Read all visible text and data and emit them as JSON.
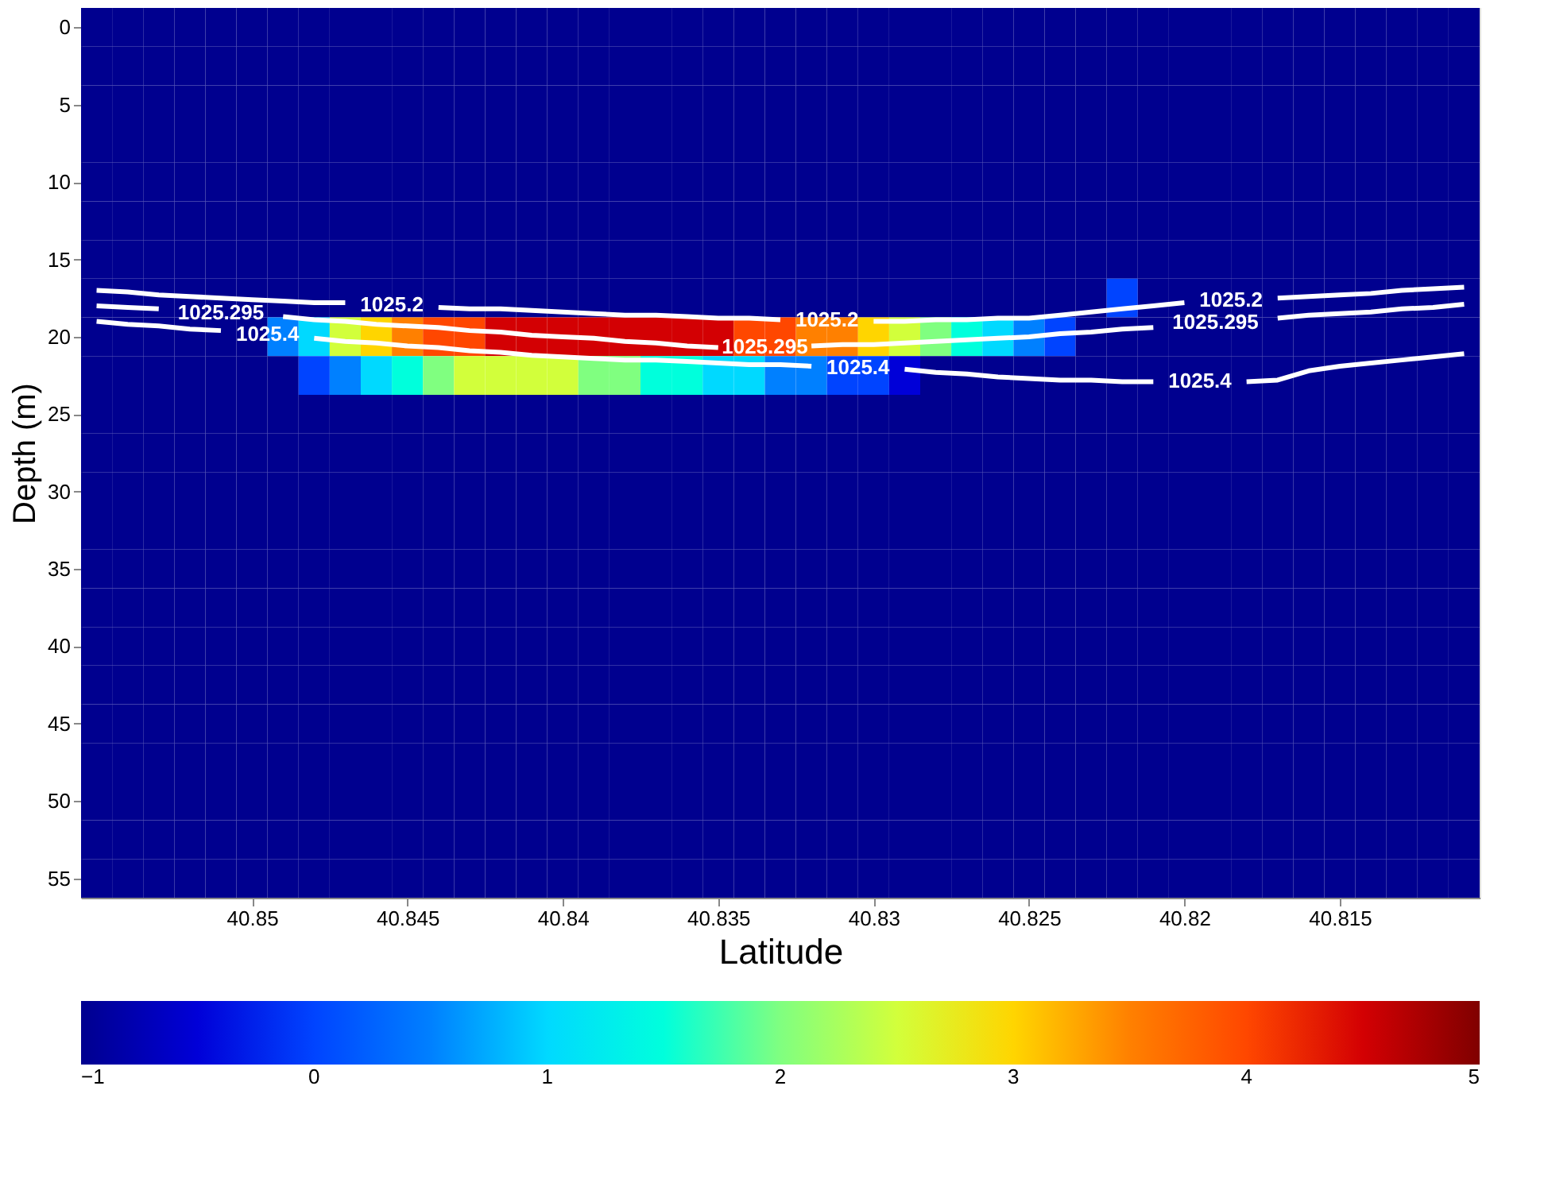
{
  "chart_data": [
    {
      "type": "heatmap",
      "tick_labels": false,
      "categories": [
        null,
        null,
        null,
        null,
        null,
        null,
        null,
        null,
        null,
        null,
        null,
        null,
        null,
        null,
        null,
        null,
        null,
        null,
        null,
        null,
        null,
        null,
        null,
        null,
        null,
        null,
        null,
        null,
        null,
        null,
        null,
        null,
        null,
        null,
        null,
        null,
        null,
        null,
        null,
        null,
        null,
        null,
        null,
        null,
        null
      ],
      "y_categories": [
        null,
        null,
        null,
        null,
        null,
        null,
        null,
        null,
        null,
        null,
        null,
        null,
        null,
        null,
        null,
        null,
        null,
        null,
        null,
        null,
        null,
        null,
        null
      ],
      "cells": [
        [
          -1,
          -1,
          -1,
          -1,
          -1,
          -1,
          -1,
          -1,
          -1,
          -1,
          -1,
          -1,
          -1,
          -1,
          -1,
          -1,
          -1,
          -1,
          -1,
          -1,
          -1,
          -1,
          -1,
          -1,
          -1,
          -1,
          -1,
          -1,
          -1,
          -1,
          -1,
          -1,
          -1,
          -1,
          -1,
          -1,
          -1,
          -1,
          -1,
          -1,
          -1,
          -1,
          -1,
          -1,
          -1
        ],
        [
          -1,
          -1,
          -1,
          -1,
          -1,
          -1,
          -1,
          -1,
          -1,
          -1,
          -1,
          -1,
          -1,
          -1,
          -1,
          -1,
          -1,
          -1,
          -1,
          -1,
          -1,
          -1,
          -1,
          -1,
          -1,
          -1,
          -1,
          -1,
          -1,
          -1,
          -1,
          -1,
          -1,
          -1,
          -1,
          -1,
          -1,
          -1,
          -1,
          -1,
          -1,
          -1,
          -1,
          -1,
          -1
        ],
        [
          -1,
          -1,
          -1,
          -1,
          -1,
          -1,
          -1,
          -1,
          -1,
          -1,
          -1,
          -1,
          -1,
          -1,
          -1,
          -1,
          -1,
          -1,
          -1,
          -1,
          -1,
          -1,
          -1,
          -1,
          -1,
          -1,
          -1,
          -1,
          -1,
          -1,
          -1,
          -1,
          -1,
          -1,
          -1,
          -1,
          -1,
          -1,
          -1,
          -1,
          -1,
          -1,
          -1,
          -1,
          -1
        ],
        [
          -1,
          -1,
          -1,
          -1,
          -1,
          -1,
          -1,
          -1,
          -1,
          -1,
          -1,
          -1,
          -1,
          -1,
          -1,
          -1,
          -1,
          -1,
          -1,
          -1,
          -1,
          -1,
          -1,
          -1,
          -1,
          -1,
          -1,
          -1,
          -1,
          -1,
          -1,
          -1,
          -1,
          -1,
          -1,
          -1,
          -1,
          -1,
          -1,
          -1,
          -1,
          -1,
          -1,
          -1,
          -1
        ],
        [
          -1,
          -1,
          -1,
          -1,
          -1,
          -1,
          -1,
          -1,
          -1,
          -1,
          -1,
          -1,
          -1,
          -1,
          -1,
          -1,
          -1,
          -1,
          -1,
          -1,
          -1,
          -1,
          -1,
          -1,
          -1,
          -1,
          -1,
          -1,
          -1,
          -1,
          -1,
          -1,
          -1,
          -1,
          -1,
          -1,
          -1,
          -1,
          -1,
          -1,
          -1,
          -1,
          -1,
          -1,
          -1
        ],
        [
          -1,
          -1,
          -1,
          -1,
          -1,
          -1,
          -1,
          -1,
          -1,
          -1,
          -1,
          -1,
          -1,
          -1,
          -1,
          -1,
          -1,
          -1,
          -1,
          -1,
          -1,
          -1,
          -1,
          -1,
          -1,
          -1,
          -1,
          -1,
          -1,
          -1,
          -1,
          -1,
          -1,
          -1,
          -1,
          -1,
          -1,
          -1,
          -1,
          -1,
          -1,
          -1,
          -1,
          -1,
          -1
        ],
        [
          -1,
          -1,
          -1,
          -1,
          -1,
          -1,
          -1,
          -1,
          -1,
          -1,
          -1,
          -1,
          -1,
          -1,
          -1,
          -1,
          -1,
          -1,
          -1,
          -1,
          -1,
          -1,
          -1,
          -1,
          -1,
          -1,
          -1,
          -1,
          -1,
          -1,
          -1,
          -1,
          -1,
          -1,
          -1,
          -1,
          -1,
          -1,
          -1,
          -1,
          -1,
          -1,
          -1,
          -1,
          -1
        ],
        [
          -1,
          -1,
          -1,
          -1,
          -1,
          -1,
          -1,
          -1,
          -1,
          -1,
          -1,
          -1,
          -1,
          -1,
          -1,
          -1,
          -1,
          -1,
          -1,
          -1,
          -1,
          -1,
          -1,
          -1,
          -1,
          -1,
          -1,
          -1,
          -1,
          -1,
          -1,
          -1,
          -1,
          0,
          -1,
          -1,
          -1,
          -1,
          -1,
          -1,
          -1,
          -1,
          -1,
          -1,
          -1
        ],
        [
          -1,
          -1,
          -1,
          -1,
          -1,
          -1,
          0.5,
          1,
          2.5,
          3,
          3.5,
          4,
          4,
          4.5,
          4.5,
          4.5,
          4.5,
          4.5,
          4.5,
          4.5,
          4.5,
          4,
          4,
          3.5,
          3.5,
          3,
          2.5,
          2,
          1.5,
          1,
          0.5,
          0,
          -1,
          -1,
          -1,
          -1,
          -1,
          -1,
          -1,
          -1,
          -1,
          -1,
          -1,
          -1,
          -1
        ],
        [
          -1,
          -1,
          -1,
          -1,
          -1,
          -1,
          -1,
          0,
          0.5,
          1,
          1.5,
          2,
          2.5,
          2.5,
          2.5,
          2.5,
          2,
          2,
          1.5,
          1.5,
          1,
          1,
          0.5,
          0.5,
          0,
          0,
          -0.5,
          -1,
          -1,
          -1,
          -1,
          -1,
          -1,
          -1,
          -1,
          -1,
          -1,
          -1,
          -1,
          -1,
          -1,
          -1,
          -1,
          -1,
          -1
        ],
        [
          -1,
          -1,
          -1,
          -1,
          -1,
          -1,
          -1,
          -1,
          -1,
          -1,
          -1,
          -1,
          -1,
          -1,
          -1,
          -1,
          -1,
          -1,
          -1,
          -1,
          -1,
          -1,
          -1,
          -1,
          -1,
          -1,
          -1,
          -1,
          -1,
          -1,
          -1,
          -1,
          -1,
          -1,
          -1,
          -1,
          -1,
          -1,
          -1,
          -1,
          -1,
          -1,
          -1,
          -1,
          -1
        ],
        [
          -1,
          -1,
          -1,
          -1,
          -1,
          -1,
          -1,
          -1,
          -1,
          -1,
          -1,
          -1,
          -1,
          -1,
          -1,
          -1,
          -1,
          -1,
          -1,
          -1,
          -1,
          -1,
          -1,
          -1,
          -1,
          -1,
          -1,
          -1,
          -1,
          -1,
          -1,
          -1,
          -1,
          -1,
          -1,
          -1,
          -1,
          -1,
          -1,
          -1,
          -1,
          -1,
          -1,
          -1,
          -1
        ],
        [
          -1,
          -1,
          -1,
          -1,
          -1,
          -1,
          -1,
          -1,
          -1,
          -1,
          -1,
          -1,
          -1,
          -1,
          -1,
          -1,
          -1,
          -1,
          -1,
          -1,
          -1,
          -1,
          -1,
          -1,
          -1,
          -1,
          -1,
          -1,
          -1,
          -1,
          -1,
          -1,
          -1,
          -1,
          -1,
          -1,
          -1,
          -1,
          -1,
          -1,
          -1,
          -1,
          -1,
          -1,
          -1
        ],
        [
          -1,
          -1,
          -1,
          -1,
          -1,
          -1,
          -1,
          -1,
          -1,
          -1,
          -1,
          -1,
          -1,
          -1,
          -1,
          -1,
          -1,
          -1,
          -1,
          -1,
          -1,
          -1,
          -1,
          -1,
          -1,
          -1,
          -1,
          -1,
          -1,
          -1,
          -1,
          -1,
          -1,
          -1,
          -1,
          -1,
          -1,
          -1,
          -1,
          -1,
          -1,
          -1,
          -1,
          -1,
          -1
        ],
        [
          -1,
          -1,
          -1,
          -1,
          -1,
          -1,
          -1,
          -1,
          -1,
          -1,
          -1,
          -1,
          -1,
          -1,
          -1,
          -1,
          -1,
          -1,
          -1,
          -1,
          -1,
          -1,
          -1,
          -1,
          -1,
          -1,
          -1,
          -1,
          -1,
          -1,
          -1,
          -1,
          -1,
          -1,
          -1,
          -1,
          -1,
          -1,
          -1,
          -1,
          -1,
          -1,
          -1,
          -1,
          -1
        ],
        [
          -1,
          -1,
          -1,
          -1,
          -1,
          -1,
          -1,
          -1,
          -1,
          -1,
          -1,
          -1,
          -1,
          -1,
          -1,
          -1,
          -1,
          -1,
          -1,
          -1,
          -1,
          -1,
          -1,
          -1,
          -1,
          -1,
          -1,
          -1,
          -1,
          -1,
          -1,
          -1,
          -1,
          -1,
          -1,
          -1,
          -1,
          -1,
          -1,
          -1,
          -1,
          -1,
          -1,
          -1,
          -1
        ],
        [
          -1,
          -1,
          -1,
          -1,
          -1,
          -1,
          -1,
          -1,
          -1,
          -1,
          -1,
          -1,
          -1,
          -1,
          -1,
          -1,
          -1,
          -1,
          -1,
          -1,
          -1,
          -1,
          -1,
          -1,
          -1,
          -1,
          -1,
          -1,
          -1,
          -1,
          -1,
          -1,
          -1,
          -1,
          -1,
          -1,
          -1,
          -1,
          -1,
          -1,
          -1,
          -1,
          -1,
          -1,
          -1
        ],
        [
          -1,
          -1,
          -1,
          -1,
          -1,
          -1,
          -1,
          -1,
          -1,
          -1,
          -1,
          -1,
          -1,
          -1,
          -1,
          -1,
          -1,
          -1,
          -1,
          -1,
          -1,
          -1,
          -1,
          -1,
          -1,
          -1,
          -1,
          -1,
          -1,
          -1,
          -1,
          -1,
          -1,
          -1,
          -1,
          -1,
          -1,
          -1,
          -1,
          -1,
          -1,
          -1,
          -1,
          -1,
          -1
        ],
        [
          -1,
          -1,
          -1,
          -1,
          -1,
          -1,
          -1,
          -1,
          -1,
          -1,
          -1,
          -1,
          -1,
          -1,
          -1,
          -1,
          -1,
          -1,
          -1,
          -1,
          -1,
          -1,
          -1,
          -1,
          -1,
          -1,
          -1,
          -1,
          -1,
          -1,
          -1,
          -1,
          -1,
          -1,
          -1,
          -1,
          -1,
          -1,
          -1,
          -1,
          -1,
          -1,
          -1,
          -1,
          -1
        ],
        [
          -1,
          -1,
          -1,
          -1,
          -1,
          -1,
          -1,
          -1,
          -1,
          -1,
          -1,
          -1,
          -1,
          -1,
          -1,
          -1,
          -1,
          -1,
          -1,
          -1,
          -1,
          -1,
          -1,
          -1,
          -1,
          -1,
          -1,
          -1,
          -1,
          -1,
          -1,
          -1,
          -1,
          -1,
          -1,
          -1,
          -1,
          -1,
          -1,
          -1,
          -1,
          -1,
          -1,
          -1,
          -1
        ],
        [
          -1,
          -1,
          -1,
          -1,
          -1,
          -1,
          -1,
          -1,
          -1,
          -1,
          -1,
          -1,
          -1,
          -1,
          -1,
          -1,
          -1,
          -1,
          -1,
          -1,
          -1,
          -1,
          -1,
          -1,
          -1,
          -1,
          -1,
          -1,
          -1,
          -1,
          -1,
          -1,
          -1,
          -1,
          -1,
          -1,
          -1,
          -1,
          -1,
          -1,
          -1,
          -1,
          -1,
          -1,
          -1
        ],
        [
          -1,
          -1,
          -1,
          -1,
          -1,
          -1,
          -1,
          -1,
          -1,
          -1,
          -1,
          -1,
          -1,
          -1,
          -1,
          -1,
          -1,
          -1,
          -1,
          -1,
          -1,
          -1,
          -1,
          -1,
          -1,
          -1,
          -1,
          -1,
          -1,
          -1,
          -1,
          -1,
          -1,
          -1,
          -1,
          -1,
          -1,
          -1,
          -1,
          -1,
          -1,
          -1,
          -1,
          -1,
          -1
        ],
        [
          -1,
          -1,
          -1,
          -1,
          -1,
          -1,
          -1,
          -1,
          -1,
          -1,
          -1,
          -1,
          -1,
          -1,
          -1,
          -1,
          -1,
          -1,
          -1,
          -1,
          -1,
          -1,
          -1,
          -1,
          -1,
          -1,
          -1,
          -1,
          -1,
          -1,
          -1,
          -1,
          -1,
          -1,
          -1,
          -1,
          -1,
          -1,
          -1,
          -1,
          -1,
          -1,
          -1,
          -1,
          -1
        ]
      ],
      "clim": [
        -1,
        5
      ],
      "cticks": [
        -1,
        0,
        1,
        2,
        3,
        4,
        5
      ]
    },
    {
      "type": "line",
      "xlabel": "Latitude",
      "ylabel": "Depth (m)",
      "xlim": [
        40.8555,
        40.8105
      ],
      "ylim": [
        56.25,
        -1.25
      ],
      "xticks": [
        40.85,
        40.845,
        40.84,
        40.835,
        40.83,
        40.825,
        40.82,
        40.815
      ],
      "yticks": [
        0,
        5,
        10,
        15,
        20,
        25,
        30,
        35,
        40,
        45,
        50,
        55
      ],
      "x": [
        40.855,
        40.854,
        40.853,
        40.852,
        40.851,
        40.85,
        40.849,
        40.848,
        40.847,
        40.846,
        40.845,
        40.844,
        40.843,
        40.842,
        40.841,
        40.84,
        40.839,
        40.838,
        40.837,
        40.836,
        40.835,
        40.834,
        40.833,
        40.832,
        40.831,
        40.83,
        40.829,
        40.828,
        40.827,
        40.826,
        40.825,
        40.824,
        40.823,
        40.822,
        40.821,
        40.82,
        40.819,
        40.818,
        40.817,
        40.816,
        40.815,
        40.814,
        40.813,
        40.812,
        40.811
      ],
      "series": [
        {
          "name": "1025.2",
          "color": "#ffffff",
          "values": [
            17.0,
            17.1,
            17.3,
            17.4,
            17.5,
            17.6,
            17.7,
            17.8,
            17.8,
            null,
            null,
            18.1,
            18.2,
            18.2,
            18.3,
            18.4,
            18.5,
            18.6,
            18.6,
            18.7,
            18.8,
            18.8,
            18.9,
            null,
            null,
            19.0,
            19.0,
            18.9,
            18.9,
            18.8,
            18.8,
            18.6,
            18.4,
            18.2,
            18.0,
            17.8,
            null,
            null,
            17.5,
            17.4,
            17.3,
            17.2,
            17.0,
            16.9,
            16.8
          ]
        },
        {
          "name": "1025.295",
          "color": "#ffffff",
          "values": [
            18.0,
            18.1,
            18.2,
            null,
            null,
            null,
            18.7,
            18.9,
            19.0,
            19.2,
            19.3,
            19.4,
            19.6,
            19.7,
            19.9,
            20.0,
            20.1,
            20.3,
            20.4,
            20.6,
            20.7,
            null,
            null,
            20.6,
            20.5,
            20.5,
            20.4,
            20.3,
            20.2,
            20.1,
            20.0,
            19.8,
            19.7,
            19.5,
            19.4,
            null,
            null,
            null,
            18.8,
            18.6,
            18.5,
            18.4,
            18.2,
            18.1,
            17.9
          ]
        },
        {
          "name": "1025.4",
          "color": "#ffffff",
          "values": [
            19.0,
            19.2,
            19.3,
            19.5,
            19.6,
            null,
            null,
            20.1,
            20.3,
            20.4,
            20.6,
            20.7,
            20.9,
            21.0,
            21.2,
            21.3,
            21.4,
            21.5,
            21.5,
            21.6,
            21.7,
            21.8,
            21.8,
            21.9,
            null,
            null,
            22.1,
            22.3,
            22.4,
            22.6,
            22.7,
            22.8,
            22.8,
            22.9,
            22.9,
            null,
            null,
            22.9,
            22.8,
            22.2,
            21.9,
            21.7,
            21.5,
            21.3,
            21.1
          ]
        }
      ]
    }
  ]
}
